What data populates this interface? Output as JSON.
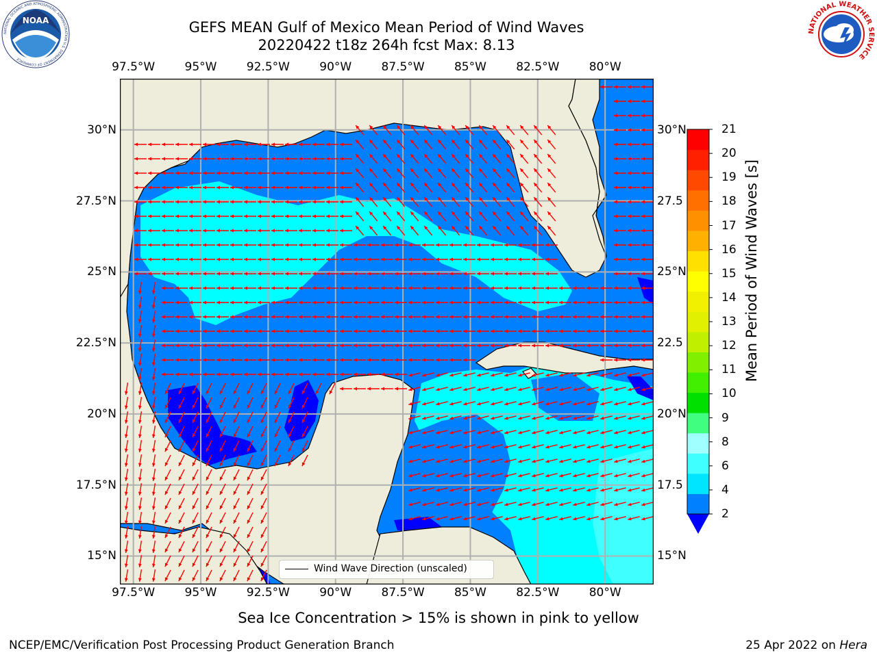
{
  "title": {
    "line1": "GEFS MEAN Gulf of Mexico Mean Period of Wind Waves",
    "line2": "20220422 t18z 264h fcst   Max: 8.13"
  },
  "logos": {
    "left": {
      "name": "noaa-logo",
      "text": "NOAA",
      "ring_text": "NATIONAL OCEANIC AND ATMOSPHERIC ADMINISTRATION  U.S. DEPARTMENT OF COMMERCE"
    },
    "right": {
      "name": "nws-logo",
      "ring_text": "NATIONAL WEATHER SERVICE"
    }
  },
  "map": {
    "lon_labels": [
      "97.5°W",
      "95°W",
      "92.5°W",
      "90°W",
      "87.5°W",
      "85°W",
      "82.5°W",
      "80°W"
    ],
    "lat_labels_left": [
      "30°N",
      "27.5°N",
      "25°N",
      "22.5°N",
      "20°N",
      "17.5°N",
      "15°N"
    ],
    "lat_labels_right": [
      "30°N",
      "27.5",
      "25°N",
      "22.5",
      "20°N",
      "17.5",
      "15°N"
    ],
    "extent": {
      "lon_min": -98.0,
      "lon_max": -78.2,
      "lat_min": 14.0,
      "lat_max": 31.8
    },
    "colors": {
      "land": "#eeecda",
      "ocean_low": "#0080ff",
      "ocean_mid": "#00ffff",
      "ocean_deep": "#0000ff",
      "arrows": "#ff0000",
      "grid": "#b0b0b0"
    }
  },
  "legend": {
    "label": "Wind Wave Direction (unscaled)"
  },
  "colorbar": {
    "label": "Mean Period of Wind Waves [s]",
    "ticks": [
      "21",
      "20",
      "19",
      "18",
      "17",
      "16",
      "15",
      "14",
      "13",
      "12",
      "11",
      "10",
      "9",
      "8",
      "6",
      "4",
      "2"
    ],
    "colors_bottom_to_top": [
      "#0080ff",
      "#00e5ff",
      "#40ffff",
      "#a0ffff",
      "#40ff80",
      "#00e000",
      "#40f000",
      "#80f000",
      "#c0f000",
      "#e0f000",
      "#f0f000",
      "#ffff00",
      "#ffe000",
      "#ffb000",
      "#ff9000",
      "#ff7000",
      "#ff4800",
      "#ff2000",
      "#ff0000"
    ],
    "extend_color": "#0000ff"
  },
  "ice_note": "Sea Ice Concentration > 15% is shown in pink to yellow",
  "footer": {
    "left": "NCEP/EMC/Verification Post Processing Product Generation Branch",
    "right_prefix": "25 Apr 2022 on ",
    "right_italic": "Hera"
  }
}
